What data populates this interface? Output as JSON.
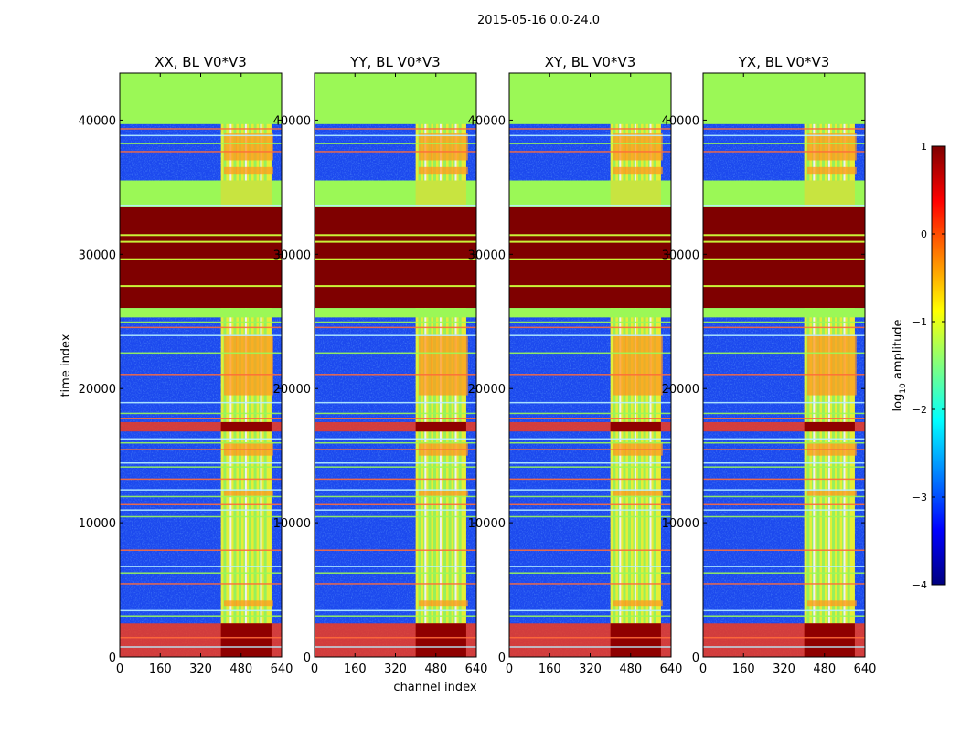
{
  "figure": {
    "suptitle": "2015-05-16 0.0-24.0",
    "xlabel": "channel index",
    "ylabel": "time index"
  },
  "colorbar": {
    "label": "log10 amplitude",
    "label_main": "log",
    "label_sub": "10",
    "label_rest": " amplitude",
    "range": [
      -4,
      1
    ],
    "tick_values": [
      1,
      0,
      -1,
      -2,
      -3,
      -4
    ],
    "tick_labels": [
      "1",
      "0",
      "−1",
      "−2",
      "−3",
      "−4"
    ],
    "colormap": "jet"
  },
  "chart_data": [
    {
      "type": "heatmap",
      "title": "XX, BL V0*V3",
      "xlabel": "",
      "ylabel": "time index",
      "xlim": [
        0,
        640
      ],
      "ylim": [
        0,
        43500
      ],
      "xticks": [
        0,
        160,
        320,
        480,
        640
      ],
      "yticks": [
        0,
        10000,
        20000,
        30000,
        40000
      ],
      "value_scale": "log10 amplitude",
      "rfi_band_channels": [
        400,
        600
      ],
      "saturated_time_ranges": [
        [
          26000,
          33500
        ],
        [
          16800,
          17500
        ],
        [
          0,
          2500
        ]
      ],
      "flagged_time_ranges": [
        [
          39700,
          43500
        ],
        [
          33500,
          35500
        ]
      ]
    },
    {
      "type": "heatmap",
      "title": "YY, BL V0*V3",
      "xlabel": "channel index",
      "ylabel": "",
      "xlim": [
        0,
        640
      ],
      "ylim": [
        0,
        43500
      ],
      "xticks": [
        0,
        160,
        320,
        480,
        640
      ],
      "yticks": [
        0,
        10000,
        20000,
        30000,
        40000
      ],
      "value_scale": "log10 amplitude",
      "rfi_band_channels": [
        400,
        600
      ],
      "saturated_time_ranges": [
        [
          26000,
          33500
        ],
        [
          16800,
          17500
        ],
        [
          0,
          2500
        ]
      ],
      "flagged_time_ranges": [
        [
          39700,
          43500
        ],
        [
          33500,
          35500
        ]
      ]
    },
    {
      "type": "heatmap",
      "title": "XY, BL V0*V3",
      "xlabel": "",
      "ylabel": "",
      "xlim": [
        0,
        640
      ],
      "ylim": [
        0,
        43500
      ],
      "xticks": [
        0,
        160,
        320,
        480,
        640
      ],
      "yticks": [
        0,
        10000,
        20000,
        30000,
        40000
      ],
      "value_scale": "log10 amplitude",
      "rfi_band_channels": [
        400,
        600
      ],
      "saturated_time_ranges": [
        [
          26000,
          33500
        ],
        [
          16800,
          17500
        ],
        [
          0,
          2500
        ]
      ],
      "flagged_time_ranges": [
        [
          39700,
          43500
        ],
        [
          33500,
          35500
        ]
      ]
    },
    {
      "type": "heatmap",
      "title": "YX, BL V0*V3",
      "xlabel": "",
      "ylabel": "",
      "xlim": [
        0,
        640
      ],
      "ylim": [
        0,
        43500
      ],
      "xticks": [
        0,
        160,
        320,
        480,
        640
      ],
      "yticks": [
        0,
        10000,
        20000,
        30000,
        40000
      ],
      "value_scale": "log10 amplitude",
      "rfi_band_channels": [
        400,
        600
      ],
      "saturated_time_ranges": [
        [
          26000,
          33500
        ],
        [
          16800,
          17500
        ],
        [
          0,
          2500
        ]
      ],
      "flagged_time_ranges": [
        [
          39700,
          43500
        ],
        [
          33500,
          35500
        ]
      ]
    }
  ]
}
